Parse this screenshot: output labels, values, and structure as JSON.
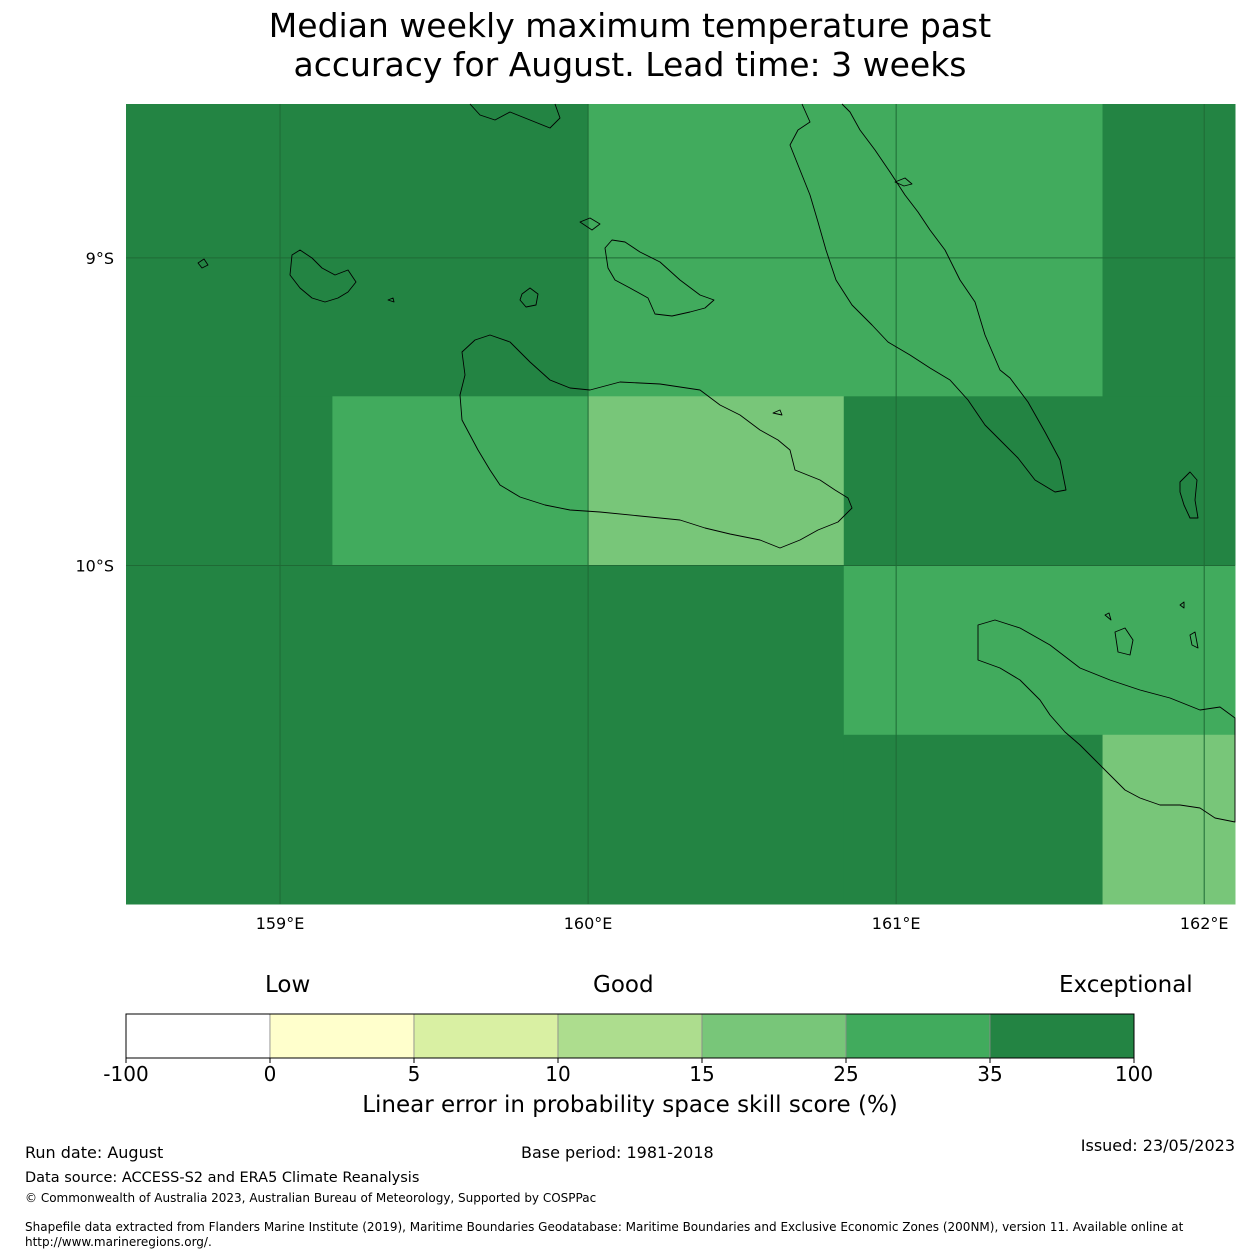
{
  "title": {
    "line1": "Median weekly maximum temperature past",
    "line2": "accuracy for August. Lead time: 3 weeks"
  },
  "map": {
    "lon_range": [
      158.5,
      162.1
    ],
    "lat_range": [
      -11.1,
      -8.5
    ],
    "lat_ticks": [
      {
        "value": -9,
        "label": "9°S"
      },
      {
        "value": -10,
        "label": "10°S"
      }
    ],
    "lon_ticks": [
      {
        "value": 159,
        "label": "159°E"
      },
      {
        "value": 160,
        "label": "160°E"
      },
      {
        "value": 161,
        "label": "161°E"
      },
      {
        "value": 162,
        "label": "162°E"
      }
    ],
    "gridlines": true,
    "skill_cells": [
      {
        "lon": [
          158.5,
          160.0
        ],
        "lat": [
          -9.45,
          -8.5
        ],
        "category": "35-100"
      },
      {
        "lon": [
          160.0,
          161.67
        ],
        "lat": [
          -9.45,
          -8.5
        ],
        "category": "25-35"
      },
      {
        "lon": [
          161.67,
          162.1
        ],
        "lat": [
          -9.45,
          -8.5
        ],
        "category": "35-100"
      },
      {
        "lon": [
          158.5,
          159.17
        ],
        "lat": [
          -10.0,
          -9.45
        ],
        "category": "35-100"
      },
      {
        "lon": [
          159.17,
          160.0
        ],
        "lat": [
          -10.0,
          -9.45
        ],
        "category": "25-35"
      },
      {
        "lon": [
          160.0,
          160.83
        ],
        "lat": [
          -10.0,
          -9.45
        ],
        "category": "15-25"
      },
      {
        "lon": [
          160.83,
          162.1
        ],
        "lat": [
          -10.0,
          -9.45
        ],
        "category": "35-100"
      },
      {
        "lon": [
          158.5,
          160.83
        ],
        "lat": [
          -11.1,
          -10.0
        ],
        "category": "35-100"
      },
      {
        "lon": [
          160.83,
          162.1
        ],
        "lat": [
          -10.55,
          -10.0
        ],
        "category": "25-35"
      },
      {
        "lon": [
          160.83,
          161.67
        ],
        "lat": [
          -11.1,
          -10.55
        ],
        "category": "35-100"
      },
      {
        "lon": [
          161.67,
          162.1
        ],
        "lat": [
          -11.1,
          -10.55
        ],
        "category": "15-25"
      }
    ]
  },
  "colorbar": {
    "words": {
      "low": "Low",
      "good": "Good",
      "exceptional": "Exceptional"
    },
    "bins": [
      {
        "range": "-100-0",
        "color": "#ffffff"
      },
      {
        "range": "0-5",
        "color": "#ffffcc"
      },
      {
        "range": "5-10",
        "color": "#d9f0a3"
      },
      {
        "range": "10-15",
        "color": "#addd8e"
      },
      {
        "range": "15-25",
        "color": "#78c679"
      },
      {
        "range": "25-35",
        "color": "#41ab5d"
      },
      {
        "range": "35-100",
        "color": "#238443"
      }
    ],
    "ticks": [
      "-100",
      "0",
      "5",
      "10",
      "15",
      "25",
      "35",
      "100"
    ],
    "label": "Linear error in probability space skill score (%)"
  },
  "footer": {
    "run_date": "Run date: August",
    "base_period": "Base period: 1981-2018",
    "issued": "Issued: 23/05/2023",
    "data_source": "Data source: ACCESS-S2 and ERA5 Climate Reanalysis",
    "copyright": "© Commonwealth of Australia 2023, Australian Bureau of Meteorology, Supported by COSPPac",
    "shapefile_line1": "Shapefile data extracted from Flanders Marine Institute (2019), Maritime Boundaries Geodatabase: Maritime Boundaries and Exclusive Economic Zones (200NM), version 11. Available online at",
    "shapefile_line2": "http://www.marineregions.org/."
  }
}
